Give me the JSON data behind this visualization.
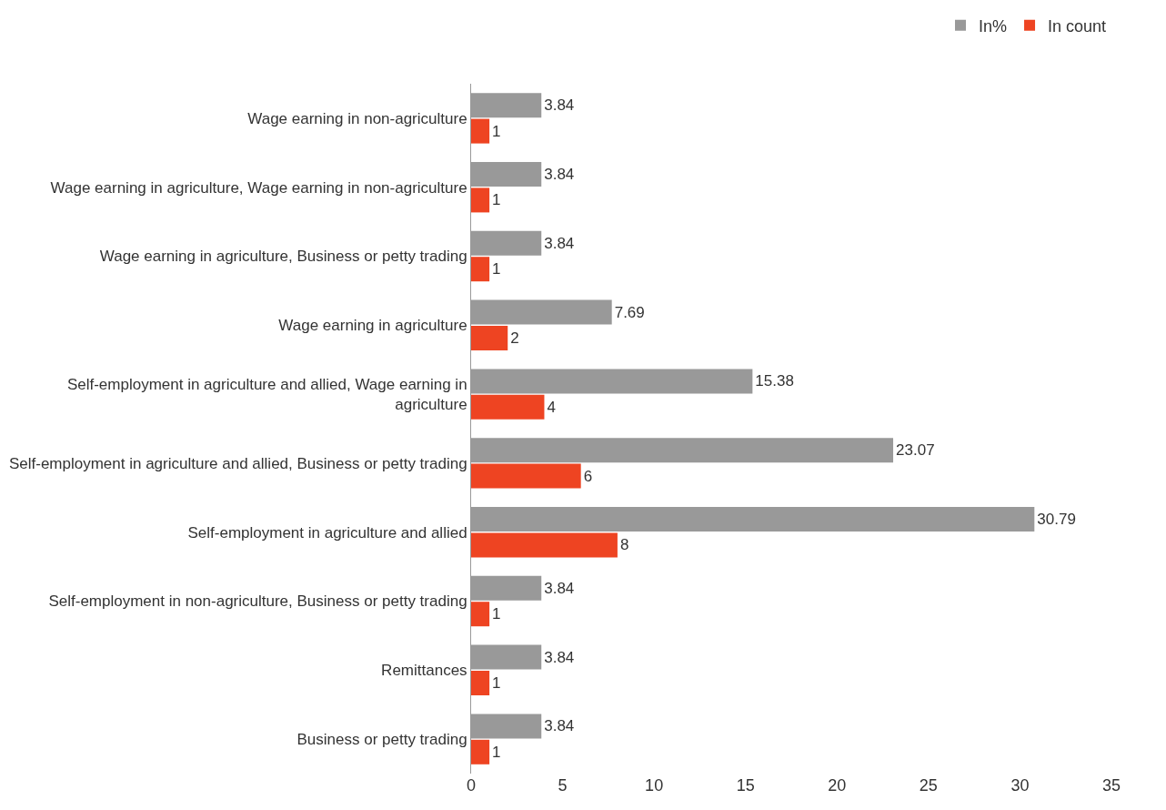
{
  "chart_data": {
    "type": "bar",
    "orientation": "horizontal",
    "categories": [
      "Wage earning in non-agriculture",
      "Wage earning in agriculture, Wage earning in non-agriculture",
      "Wage earning in agriculture, Business or petty trading",
      "Wage earning in agriculture",
      "Self-employment in agriculture and allied, Wage earning in agriculture",
      "Self-employment in agriculture and allied, Business or petty trading",
      "Self-employment in agriculture and allied",
      "Self-employment in non-agriculture, Business or petty trading",
      "Remittances",
      "Business or petty trading"
    ],
    "series": [
      {
        "name": "In%",
        "color": "#999999",
        "values": [
          3.84,
          3.84,
          3.84,
          7.69,
          15.38,
          23.07,
          30.79,
          3.84,
          3.84,
          3.84
        ]
      },
      {
        "name": "In count",
        "color": "#ee4422",
        "values": [
          1,
          1,
          1,
          2,
          4,
          6,
          8,
          1,
          1,
          1
        ]
      }
    ],
    "xlim": [
      0,
      35
    ],
    "xticks": [
      0,
      5,
      10,
      15,
      20,
      25,
      30,
      35
    ],
    "grid": false,
    "legend": "top right",
    "data_labels": true
  }
}
